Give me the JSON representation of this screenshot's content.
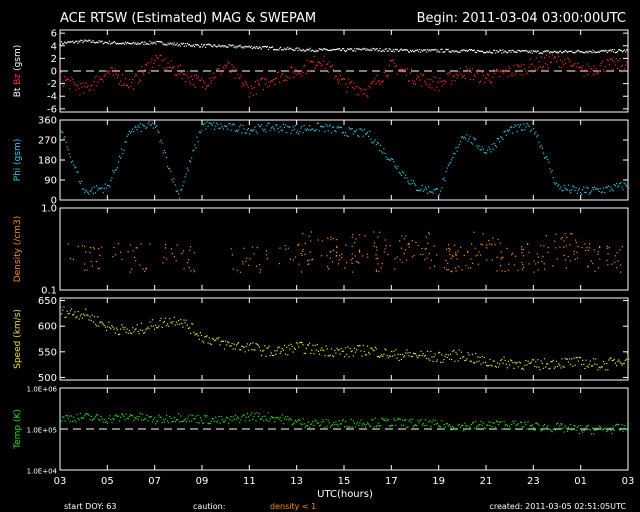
{
  "header": {
    "title": "ACE RTSW (Estimated) MAG & SWEPAM",
    "begin": "Begin: 2011-03-04 03:00:00UTC"
  },
  "footer": {
    "start_doy": "start DOY:  63",
    "caution": "caution:",
    "density_note": "density < 1",
    "created": "created: 2011-03-05 02:51:05UTC"
  },
  "colors": {
    "bt": "#ffffff",
    "bz": "#ff2a2a",
    "phi": "#2ec8f0",
    "density": "#ff8c1a",
    "speed": "#e8e030",
    "temp": "#22e022",
    "axis": "#ffffff"
  },
  "chart_data": [
    {
      "type": "scatter",
      "panel": "mag",
      "ylabel_parts": [
        "Bt",
        "Bz",
        "(gsm)"
      ],
      "yticks": [
        "6",
        "4",
        "2",
        "0",
        "-2",
        "-4",
        "-6"
      ],
      "ylim": [
        -6.5,
        6.5
      ],
      "reference_line": 0,
      "series": [
        {
          "name": "Bt",
          "x": [
            3,
            4,
            5,
            6,
            7,
            8,
            9,
            10,
            11,
            12,
            13,
            14,
            15,
            16,
            17,
            18,
            19,
            20,
            21,
            22,
            23,
            24,
            25,
            26,
            27
          ],
          "values": [
            4.5,
            4.8,
            4.6,
            4.4,
            4.6,
            4.3,
            4.1,
            4.0,
            3.9,
            3.7,
            3.5,
            3.4,
            3.4,
            3.5,
            3.4,
            3.3,
            3.3,
            3.3,
            3.2,
            3.2,
            3.1,
            3.1,
            3.2,
            3.2,
            3.3
          ]
        },
        {
          "name": "Bz",
          "x": [
            3,
            4,
            5,
            6,
            7,
            8,
            9,
            10,
            11,
            12,
            13,
            14,
            15,
            16,
            17,
            18,
            19,
            20,
            21,
            22,
            23,
            24,
            25,
            26,
            27
          ],
          "values": [
            -1,
            -3,
            0,
            -2,
            2,
            0,
            -2,
            1,
            -3,
            -1,
            0,
            2,
            -2,
            -3,
            1,
            -1,
            -2,
            0,
            -1,
            0,
            1,
            2,
            0,
            1,
            1
          ]
        }
      ]
    },
    {
      "type": "scatter",
      "panel": "phi",
      "ylabel": "Phi (gsm)",
      "yticks": [
        "360",
        "270",
        "180",
        "90",
        "0"
      ],
      "ylim": [
        0,
        360
      ],
      "x": [
        3,
        4,
        5,
        6,
        7,
        8,
        9,
        10,
        11,
        12,
        13,
        14,
        15,
        16,
        17,
        18,
        19,
        20,
        21,
        22,
        23,
        24,
        25,
        26,
        27
      ],
      "values": [
        320,
        40,
        60,
        320,
        340,
        20,
        340,
        330,
        320,
        330,
        320,
        330,
        310,
        300,
        180,
        60,
        40,
        300,
        220,
        320,
        330,
        60,
        40,
        50,
        70
      ]
    },
    {
      "type": "scatter",
      "panel": "density",
      "ylabel": "Density (/cm3)",
      "yticks": [
        "1.0",
        "0.1"
      ],
      "ylim": [
        0.1,
        1.0
      ],
      "log": true,
      "x": [
        4,
        6,
        8,
        11,
        13,
        14,
        15,
        16,
        17,
        18,
        19,
        20,
        21,
        22,
        23,
        24,
        25,
        26
      ],
      "values": [
        0.25,
        0.25,
        0.25,
        0.25,
        0.25,
        0.35,
        0.25,
        0.35,
        0.25,
        0.35,
        0.25,
        0.25,
        0.35,
        0.25,
        0.25,
        0.35,
        0.25,
        0.25
      ]
    },
    {
      "type": "scatter",
      "panel": "speed",
      "ylabel": "Speed (km/s)",
      "yticks": [
        "650",
        "600",
        "550",
        "500"
      ],
      "ylim": [
        495,
        655
      ],
      "x": [
        3,
        4,
        5,
        6,
        7,
        8,
        9,
        10,
        11,
        12,
        13,
        14,
        15,
        16,
        17,
        18,
        19,
        20,
        21,
        22,
        23,
        24,
        25,
        26,
        27
      ],
      "values": [
        630,
        625,
        600,
        590,
        605,
        615,
        580,
        565,
        560,
        550,
        560,
        555,
        550,
        555,
        545,
        545,
        540,
        545,
        530,
        530,
        525,
        530,
        530,
        525,
        540
      ]
    },
    {
      "type": "scatter",
      "panel": "temp",
      "ylabel": "Temp (K)",
      "yticks": [
        "1.0E+06",
        "1.0E+05",
        "1.0E+04"
      ],
      "ylim": [
        10000,
        1000000
      ],
      "log": true,
      "reference_line": 100000,
      "x": [
        3,
        4,
        5,
        6,
        7,
        8,
        9,
        10,
        11,
        12,
        13,
        14,
        15,
        16,
        17,
        18,
        19,
        20,
        21,
        22,
        23,
        24,
        25,
        26,
        27
      ],
      "values": [
        190000,
        200000,
        180000,
        210000,
        170000,
        200000,
        180000,
        160000,
        210000,
        200000,
        150000,
        140000,
        140000,
        150000,
        150000,
        140000,
        130000,
        120000,
        130000,
        130000,
        120000,
        110000,
        100000,
        100000,
        110000
      ]
    }
  ],
  "x_axis": {
    "ticks": [
      "03",
      "05",
      "07",
      "09",
      "11",
      "13",
      "15",
      "17",
      "19",
      "21",
      "23",
      "01",
      "03"
    ],
    "label": "UTC(hours)"
  }
}
